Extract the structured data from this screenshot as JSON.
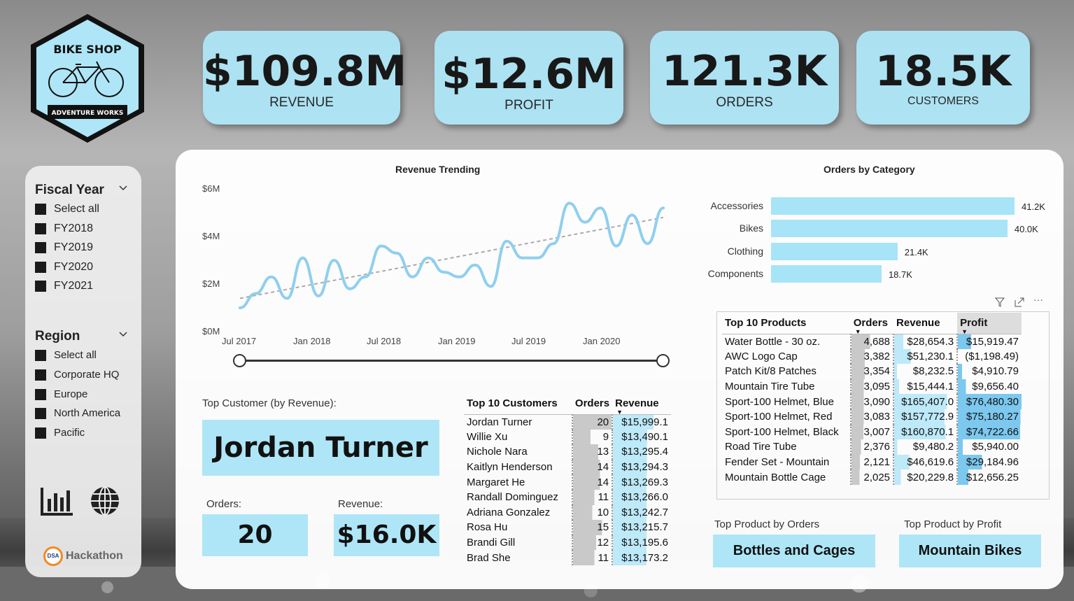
{
  "logo": {
    "top_text": "BIKE SHOP",
    "bottom_text": "ADVENTURE WORKS"
  },
  "kpis": [
    {
      "value": "$109.8M",
      "label": "REVENUE"
    },
    {
      "value": "$12.6M",
      "label": "PROFIT"
    },
    {
      "value": "121.3K",
      "label": "ORDERS"
    },
    {
      "value": "18.5K",
      "label": "CUSTOMERS"
    }
  ],
  "slicers": {
    "fiscal_year": {
      "title": "Fiscal Year",
      "options": [
        "Select all",
        "FY2018",
        "FY2019",
        "FY2020",
        "FY2021"
      ]
    },
    "region": {
      "title": "Region",
      "options": [
        "Select all",
        "Corporate HQ",
        "Europe",
        "North America",
        "Pacific"
      ]
    }
  },
  "nav_icons": [
    "bar-chart-icon",
    "globe-icon"
  ],
  "footer": {
    "brand": "Hackathon",
    "badge": "DSA"
  },
  "revenue_trend": {
    "title": "Revenue Trending",
    "y_ticks": [
      "$6M",
      "$4M",
      "$2M",
      "$0M"
    ],
    "x_ticks": [
      "Jul 2017",
      "Jan 2018",
      "Jul 2018",
      "Jan 2019",
      "Jul 2019",
      "Jan 2020"
    ]
  },
  "chart_data": [
    {
      "type": "line",
      "title": "Revenue Trending",
      "ylim": [
        0,
        6
      ],
      "yunit": "$M",
      "values": [
        1.0,
        1.6,
        2.3,
        1.4,
        3.1,
        1.5,
        3.0,
        1.8,
        2.3,
        3.6,
        3.3,
        2.3,
        3.1,
        2.5,
        2.3,
        2.8,
        1.9,
        3.8,
        3.1,
        3.1,
        3.7,
        5.4,
        4.6,
        5.2,
        3.6,
        4.9,
        3.7,
        5.2
      ],
      "trend": [
        1.4,
        4.8
      ]
    },
    {
      "type": "bar",
      "title": "Orders by Category",
      "categories": [
        "Accessories",
        "Bikes",
        "Clothing",
        "Components"
      ],
      "values": [
        41.2,
        40.0,
        21.4,
        18.7
      ],
      "labels": [
        "41.2K",
        "40.0K",
        "21.4K",
        "18.7K"
      ]
    }
  ],
  "top_customer": {
    "label": "Top Customer (by Revenue):",
    "name": "Jordan Turner",
    "orders_label": "Orders:",
    "orders": "20",
    "revenue_label": "Revenue:",
    "revenue": "$16.0K"
  },
  "customers_table": {
    "headers": [
      "Top 10 Customers",
      "Orders",
      "Revenue"
    ],
    "rows": [
      [
        "Jordan Turner",
        "20",
        "$15,999.1"
      ],
      [
        "Willie Xu",
        "9",
        "$13,490.1"
      ],
      [
        "Nichole Nara",
        "13",
        "$13,295.4"
      ],
      [
        "Kaitlyn Henderson",
        "14",
        "$13,294.3"
      ],
      [
        "Margaret He",
        "14",
        "$13,269.3"
      ],
      [
        "Randall Dominguez",
        "11",
        "$13,266.0"
      ],
      [
        "Adriana Gonzalez",
        "10",
        "$13,242.7"
      ],
      [
        "Rosa Hu",
        "15",
        "$13,215.7"
      ],
      [
        "Brandi Gill",
        "12",
        "$13,195.6"
      ],
      [
        "Brad She",
        "11",
        "$13,173.2"
      ]
    ]
  },
  "products_table": {
    "headers": [
      "Top 10 Products",
      "Orders",
      "Revenue",
      "Profit"
    ],
    "rows": [
      [
        "Water Bottle - 30 oz.",
        "4,688",
        "$28,654.3",
        "$15,919.47"
      ],
      [
        "AWC Logo Cap",
        "3,382",
        "$51,230.1",
        "($1,198.49)"
      ],
      [
        "Patch Kit/8 Patches",
        "3,354",
        "$8,232.5",
        "$4,910.79"
      ],
      [
        "Mountain Tire Tube",
        "3,095",
        "$15,444.1",
        "$9,656.40"
      ],
      [
        "Sport-100 Helmet, Blue",
        "3,090",
        "$165,407.0",
        "$76,480.30"
      ],
      [
        "Sport-100 Helmet, Red",
        "3,083",
        "$157,772.9",
        "$75,180.27"
      ],
      [
        "Sport-100 Helmet, Black",
        "3,007",
        "$160,870.1",
        "$74,722.66"
      ],
      [
        "Road Tire Tube",
        "2,376",
        "$9,480.2",
        "$5,940.00"
      ],
      [
        "Fender Set - Mountain",
        "2,121",
        "$46,619.6",
        "$29,184.96"
      ],
      [
        "Mountain Bottle Cage",
        "2,025",
        "$20,229.8",
        "$12,656.25"
      ]
    ]
  },
  "top_product_orders": {
    "label": "Top Product by Orders",
    "value": "Bottles and Cages"
  },
  "top_product_profit": {
    "label": "Top Product by Profit",
    "value": "Mountain Bikes"
  },
  "colors": {
    "accent": "#aee6f7",
    "line": "#8fcfee",
    "trend": "#aaaaaa"
  }
}
